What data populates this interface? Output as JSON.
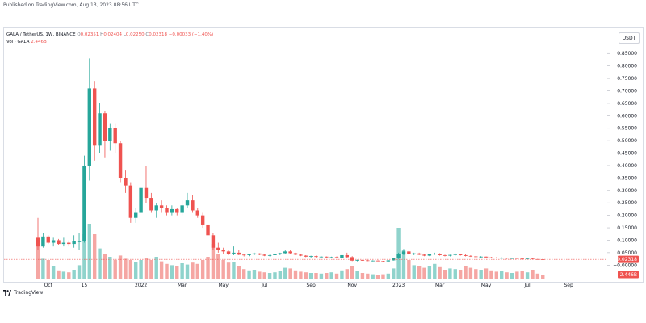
{
  "header": {
    "published": "Published on TradingView.com, Aug 13, 2023 08:56 UTC"
  },
  "legend": {
    "symbol": "GALA / TetherUS, 1W, BINANCE",
    "open_label": "O",
    "open": "0.02351",
    "high_label": "H",
    "high": "0.02404",
    "low_label": "L",
    "low": "0.02250",
    "close_label": "C",
    "close": "0.02318",
    "change": "−0.00033 (−1.40%)",
    "vol_label": "Vol · GALA",
    "vol_value": "2.446B"
  },
  "toolbar": {
    "unit": "USDT"
  },
  "footer": {
    "brand": "TradingView",
    "logo_icon": "tradingview-logo-icon"
  },
  "colors": {
    "up": "#26a69a",
    "down": "#ef5350",
    "vol_up": "#8fd3cc",
    "vol_down": "#f5a6a3",
    "price_line": "#ef5350"
  },
  "chart_data": {
    "type": "candlestick",
    "price_axis": {
      "ylim": [
        -0.025,
        0.88
      ],
      "ticks": [
        0.85,
        0.8,
        0.75,
        0.7,
        0.65,
        0.6,
        0.55,
        0.5,
        0.45,
        0.4,
        0.35,
        0.3,
        0.25,
        0.2,
        0.15,
        0.1,
        0.05,
        0.0
      ],
      "tick_labels": [
        "0.85000",
        "0.80000",
        "0.75000",
        "0.70000",
        "0.65000",
        "0.60000",
        "0.55000",
        "0.50000",
        "0.45000",
        "0.40000",
        "0.35000",
        "0.30000",
        "0.25000",
        "0.20000",
        "0.15000",
        "0.10000",
        "0.05000",
        "−0.00000"
      ],
      "last_price": 0.02318,
      "last_price_label": "0.02318"
    },
    "volume": {
      "last_label": "2.446B"
    },
    "x_axis": {
      "labels": [
        "Oct",
        "15",
        "2022",
        "Mar",
        "May",
        "Jul",
        "Sep",
        "Nov",
        "2023",
        "Mar",
        "May",
        "Jul",
        "Sep"
      ],
      "label_week_index": [
        2,
        9,
        20,
        28,
        36,
        44,
        53,
        61,
        70,
        78,
        87,
        95,
        103
      ]
    },
    "candles": [
      {
        "o": 0.11,
        "h": 0.19,
        "l": 0.06,
        "c": 0.075,
        "v": 0.55
      },
      {
        "o": 0.075,
        "h": 0.13,
        "l": 0.07,
        "c": 0.115,
        "v": 0.32
      },
      {
        "o": 0.115,
        "h": 0.12,
        "l": 0.085,
        "c": 0.09,
        "v": 0.3
      },
      {
        "o": 0.09,
        "h": 0.11,
        "l": 0.075,
        "c": 0.1,
        "v": 0.2
      },
      {
        "o": 0.1,
        "h": 0.105,
        "l": 0.08,
        "c": 0.085,
        "v": 0.14
      },
      {
        "o": 0.085,
        "h": 0.11,
        "l": 0.075,
        "c": 0.09,
        "v": 0.12
      },
      {
        "o": 0.09,
        "h": 0.1,
        "l": 0.075,
        "c": 0.085,
        "v": 0.11
      },
      {
        "o": 0.085,
        "h": 0.12,
        "l": 0.07,
        "c": 0.095,
        "v": 0.15
      },
      {
        "o": 0.095,
        "h": 0.13,
        "l": 0.06,
        "c": 0.095,
        "v": 0.22
      },
      {
        "o": 0.095,
        "h": 0.44,
        "l": 0.09,
        "c": 0.4,
        "v": 0.7
      },
      {
        "o": 0.4,
        "h": 0.83,
        "l": 0.34,
        "c": 0.71,
        "v": 0.85
      },
      {
        "o": 0.71,
        "h": 0.74,
        "l": 0.42,
        "c": 0.48,
        "v": 0.7
      },
      {
        "o": 0.48,
        "h": 0.65,
        "l": 0.45,
        "c": 0.61,
        "v": 0.48
      },
      {
        "o": 0.61,
        "h": 0.62,
        "l": 0.43,
        "c": 0.5,
        "v": 0.4
      },
      {
        "o": 0.5,
        "h": 0.57,
        "l": 0.46,
        "c": 0.55,
        "v": 0.35
      },
      {
        "o": 0.55,
        "h": 0.57,
        "l": 0.45,
        "c": 0.49,
        "v": 0.3
      },
      {
        "o": 0.49,
        "h": 0.5,
        "l": 0.33,
        "c": 0.35,
        "v": 0.37
      },
      {
        "o": 0.35,
        "h": 0.38,
        "l": 0.29,
        "c": 0.32,
        "v": 0.32
      },
      {
        "o": 0.32,
        "h": 0.33,
        "l": 0.17,
        "c": 0.19,
        "v": 0.3
      },
      {
        "o": 0.19,
        "h": 0.23,
        "l": 0.17,
        "c": 0.21,
        "v": 0.27
      },
      {
        "o": 0.21,
        "h": 0.32,
        "l": 0.18,
        "c": 0.31,
        "v": 0.3
      },
      {
        "o": 0.31,
        "h": 0.4,
        "l": 0.25,
        "c": 0.27,
        "v": 0.33
      },
      {
        "o": 0.27,
        "h": 0.29,
        "l": 0.21,
        "c": 0.22,
        "v": 0.3
      },
      {
        "o": 0.22,
        "h": 0.25,
        "l": 0.19,
        "c": 0.24,
        "v": 0.35
      },
      {
        "o": 0.24,
        "h": 0.26,
        "l": 0.21,
        "c": 0.23,
        "v": 0.28
      },
      {
        "o": 0.23,
        "h": 0.24,
        "l": 0.2,
        "c": 0.21,
        "v": 0.24
      },
      {
        "o": 0.21,
        "h": 0.24,
        "l": 0.2,
        "c": 0.225,
        "v": 0.22
      },
      {
        "o": 0.225,
        "h": 0.23,
        "l": 0.2,
        "c": 0.21,
        "v": 0.2
      },
      {
        "o": 0.21,
        "h": 0.26,
        "l": 0.2,
        "c": 0.24,
        "v": 0.25
      },
      {
        "o": 0.24,
        "h": 0.29,
        "l": 0.23,
        "c": 0.26,
        "v": 0.23
      },
      {
        "o": 0.26,
        "h": 0.28,
        "l": 0.21,
        "c": 0.22,
        "v": 0.26
      },
      {
        "o": 0.22,
        "h": 0.23,
        "l": 0.19,
        "c": 0.2,
        "v": 0.24
      },
      {
        "o": 0.2,
        "h": 0.21,
        "l": 0.15,
        "c": 0.16,
        "v": 0.3
      },
      {
        "o": 0.16,
        "h": 0.17,
        "l": 0.11,
        "c": 0.12,
        "v": 0.35
      },
      {
        "o": 0.12,
        "h": 0.13,
        "l": 0.06,
        "c": 0.07,
        "v": 0.55
      },
      {
        "o": 0.07,
        "h": 0.09,
        "l": 0.05,
        "c": 0.06,
        "v": 0.4
      },
      {
        "o": 0.06,
        "h": 0.07,
        "l": 0.045,
        "c": 0.055,
        "v": 0.3
      },
      {
        "o": 0.055,
        "h": 0.06,
        "l": 0.04,
        "c": 0.045,
        "v": 0.26
      },
      {
        "o": 0.045,
        "h": 0.075,
        "l": 0.04,
        "c": 0.05,
        "v": 0.27
      },
      {
        "o": 0.05,
        "h": 0.06,
        "l": 0.04,
        "c": 0.042,
        "v": 0.2
      },
      {
        "o": 0.042,
        "h": 0.045,
        "l": 0.035,
        "c": 0.04,
        "v": 0.16
      },
      {
        "o": 0.04,
        "h": 0.046,
        "l": 0.036,
        "c": 0.043,
        "v": 0.14
      },
      {
        "o": 0.043,
        "h": 0.05,
        "l": 0.04,
        "c": 0.047,
        "v": 0.15
      },
      {
        "o": 0.047,
        "h": 0.048,
        "l": 0.04,
        "c": 0.042,
        "v": 0.12
      },
      {
        "o": 0.042,
        "h": 0.044,
        "l": 0.036,
        "c": 0.038,
        "v": 0.11
      },
      {
        "o": 0.038,
        "h": 0.042,
        "l": 0.035,
        "c": 0.04,
        "v": 0.1
      },
      {
        "o": 0.04,
        "h": 0.046,
        "l": 0.037,
        "c": 0.044,
        "v": 0.11
      },
      {
        "o": 0.044,
        "h": 0.05,
        "l": 0.04,
        "c": 0.048,
        "v": 0.13
      },
      {
        "o": 0.048,
        "h": 0.06,
        "l": 0.045,
        "c": 0.055,
        "v": 0.18
      },
      {
        "o": 0.055,
        "h": 0.062,
        "l": 0.045,
        "c": 0.048,
        "v": 0.17
      },
      {
        "o": 0.048,
        "h": 0.05,
        "l": 0.04,
        "c": 0.042,
        "v": 0.14
      },
      {
        "o": 0.042,
        "h": 0.045,
        "l": 0.036,
        "c": 0.038,
        "v": 0.12
      },
      {
        "o": 0.038,
        "h": 0.04,
        "l": 0.032,
        "c": 0.034,
        "v": 0.11
      },
      {
        "o": 0.034,
        "h": 0.038,
        "l": 0.03,
        "c": 0.036,
        "v": 0.1
      },
      {
        "o": 0.036,
        "h": 0.038,
        "l": 0.031,
        "c": 0.033,
        "v": 0.1
      },
      {
        "o": 0.033,
        "h": 0.036,
        "l": 0.03,
        "c": 0.034,
        "v": 0.09
      },
      {
        "o": 0.034,
        "h": 0.035,
        "l": 0.029,
        "c": 0.031,
        "v": 0.1
      },
      {
        "o": 0.031,
        "h": 0.034,
        "l": 0.028,
        "c": 0.032,
        "v": 0.11
      },
      {
        "o": 0.032,
        "h": 0.035,
        "l": 0.029,
        "c": 0.03,
        "v": 0.09
      },
      {
        "o": 0.03,
        "h": 0.045,
        "l": 0.028,
        "c": 0.04,
        "v": 0.14
      },
      {
        "o": 0.04,
        "h": 0.05,
        "l": 0.03,
        "c": 0.032,
        "v": 0.16
      },
      {
        "o": 0.032,
        "h": 0.036,
        "l": 0.016,
        "c": 0.018,
        "v": 0.2
      },
      {
        "o": 0.018,
        "h": 0.022,
        "l": 0.015,
        "c": 0.02,
        "v": 0.13
      },
      {
        "o": 0.02,
        "h": 0.022,
        "l": 0.017,
        "c": 0.019,
        "v": 0.1
      },
      {
        "o": 0.019,
        "h": 0.02,
        "l": 0.016,
        "c": 0.017,
        "v": 0.09
      },
      {
        "o": 0.017,
        "h": 0.019,
        "l": 0.015,
        "c": 0.018,
        "v": 0.08
      },
      {
        "o": 0.018,
        "h": 0.019,
        "l": 0.015,
        "c": 0.016,
        "v": 0.07
      },
      {
        "o": 0.016,
        "h": 0.017,
        "l": 0.014,
        "c": 0.015,
        "v": 0.08
      },
      {
        "o": 0.015,
        "h": 0.02,
        "l": 0.014,
        "c": 0.019,
        "v": 0.09
      },
      {
        "o": 0.019,
        "h": 0.03,
        "l": 0.018,
        "c": 0.028,
        "v": 0.17
      },
      {
        "o": 0.028,
        "h": 0.05,
        "l": 0.025,
        "c": 0.045,
        "v": 0.8
      },
      {
        "o": 0.045,
        "h": 0.065,
        "l": 0.04,
        "c": 0.055,
        "v": 0.45
      },
      {
        "o": 0.055,
        "h": 0.06,
        "l": 0.04,
        "c": 0.045,
        "v": 0.3
      },
      {
        "o": 0.045,
        "h": 0.05,
        "l": 0.04,
        "c": 0.047,
        "v": 0.22
      },
      {
        "o": 0.047,
        "h": 0.05,
        "l": 0.04,
        "c": 0.042,
        "v": 0.2
      },
      {
        "o": 0.042,
        "h": 0.044,
        "l": 0.036,
        "c": 0.038,
        "v": 0.18
      },
      {
        "o": 0.038,
        "h": 0.046,
        "l": 0.036,
        "c": 0.044,
        "v": 0.21
      },
      {
        "o": 0.044,
        "h": 0.05,
        "l": 0.041,
        "c": 0.046,
        "v": 0.24
      },
      {
        "o": 0.046,
        "h": 0.048,
        "l": 0.038,
        "c": 0.04,
        "v": 0.19
      },
      {
        "o": 0.04,
        "h": 0.042,
        "l": 0.035,
        "c": 0.038,
        "v": 0.15
      },
      {
        "o": 0.038,
        "h": 0.042,
        "l": 0.035,
        "c": 0.041,
        "v": 0.17
      },
      {
        "o": 0.041,
        "h": 0.047,
        "l": 0.038,
        "c": 0.044,
        "v": 0.16
      },
      {
        "o": 0.044,
        "h": 0.045,
        "l": 0.038,
        "c": 0.04,
        "v": 0.15
      },
      {
        "o": 0.04,
        "h": 0.043,
        "l": 0.035,
        "c": 0.037,
        "v": 0.21
      },
      {
        "o": 0.037,
        "h": 0.04,
        "l": 0.033,
        "c": 0.035,
        "v": 0.18
      },
      {
        "o": 0.035,
        "h": 0.037,
        "l": 0.031,
        "c": 0.033,
        "v": 0.16
      },
      {
        "o": 0.033,
        "h": 0.036,
        "l": 0.03,
        "c": 0.034,
        "v": 0.15
      },
      {
        "o": 0.034,
        "h": 0.035,
        "l": 0.029,
        "c": 0.031,
        "v": 0.17
      },
      {
        "o": 0.031,
        "h": 0.033,
        "l": 0.028,
        "c": 0.03,
        "v": 0.14
      },
      {
        "o": 0.03,
        "h": 0.032,
        "l": 0.027,
        "c": 0.028,
        "v": 0.12
      },
      {
        "o": 0.028,
        "h": 0.031,
        "l": 0.026,
        "c": 0.029,
        "v": 0.13
      },
      {
        "o": 0.029,
        "h": 0.03,
        "l": 0.025,
        "c": 0.027,
        "v": 0.11
      },
      {
        "o": 0.027,
        "h": 0.029,
        "l": 0.025,
        "c": 0.028,
        "v": 0.1
      },
      {
        "o": 0.028,
        "h": 0.03,
        "l": 0.026,
        "c": 0.027,
        "v": 0.12
      },
      {
        "o": 0.027,
        "h": 0.028,
        "l": 0.024,
        "c": 0.025,
        "v": 0.13
      },
      {
        "o": 0.025,
        "h": 0.028,
        "l": 0.024,
        "c": 0.026,
        "v": 0.11
      },
      {
        "o": 0.026,
        "h": 0.027,
        "l": 0.022,
        "c": 0.024,
        "v": 0.15
      },
      {
        "o": 0.024,
        "h": 0.0245,
        "l": 0.022,
        "c": 0.0235,
        "v": 0.09
      },
      {
        "o": 0.02351,
        "h": 0.02404,
        "l": 0.0225,
        "c": 0.02318,
        "v": 0.07
      }
    ]
  }
}
